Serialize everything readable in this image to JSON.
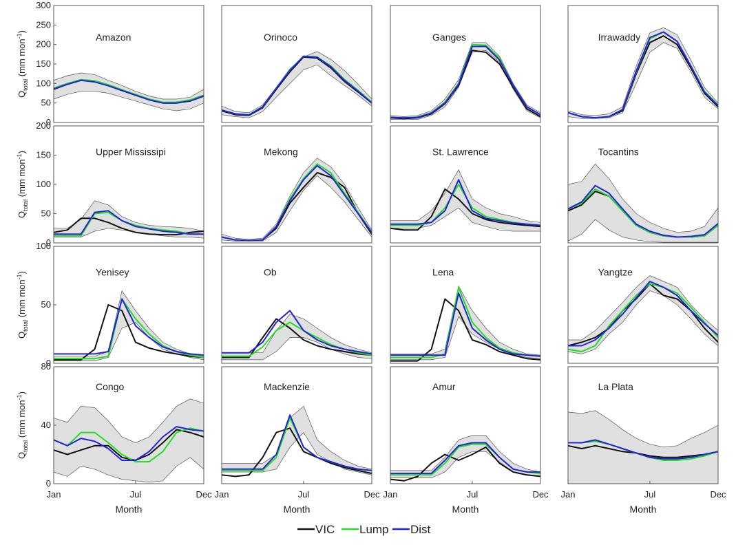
{
  "chart_data": {
    "type": "line",
    "x_tick_labels": [
      "Jan",
      "Jul",
      "Dec"
    ],
    "xlabel": "Month",
    "ylabel_main": "Q",
    "ylabel_sub": "total",
    "ylabel_unit": " (mm mon",
    "ylabel_exp": "-1",
    "ylabel_close": ")",
    "legend": [
      {
        "name": "VIC",
        "color": "#111111"
      },
      {
        "name": "Lump",
        "color": "#22dd22"
      },
      {
        "name": "Dist",
        "color": "#2222dd"
      }
    ],
    "band_color": "#e0e0e0",
    "rows": [
      {
        "ylim": [
          0,
          300
        ],
        "yticks": [
          0,
          50,
          100,
          150,
          200,
          250,
          300
        ]
      },
      {
        "ylim": [
          0,
          200
        ],
        "yticks": [
          0,
          50,
          100,
          150,
          200
        ]
      },
      {
        "ylim": [
          0,
          100
        ],
        "yticks": [
          0,
          50,
          100
        ]
      },
      {
        "ylim": [
          0,
          80
        ],
        "yticks": [
          0,
          40,
          80
        ]
      }
    ],
    "panels": [
      {
        "title": "Amazon",
        "row": 0,
        "col": 0,
        "band_lo": [
          60,
          72,
          80,
          80,
          75,
          65,
          55,
          45,
          35,
          30,
          35,
          50
        ],
        "band_hi": [
          108,
          120,
          127,
          123,
          108,
          95,
          80,
          68,
          60,
          60,
          65,
          85
        ],
        "vic": [
          85,
          98,
          108,
          105,
          95,
          82,
          70,
          58,
          50,
          50,
          55,
          68
        ],
        "lump": [
          88,
          100,
          110,
          107,
          97,
          84,
          72,
          60,
          52,
          52,
          58,
          70
        ],
        "dist": [
          86,
          98,
          108,
          104,
          94,
          82,
          70,
          58,
          50,
          50,
          55,
          68
        ]
      },
      {
        "title": "Orinoco",
        "row": 0,
        "col": 1,
        "band_lo": [
          20,
          15,
          12,
          28,
          65,
          100,
          135,
          148,
          120,
          95,
          70,
          42
        ],
        "band_hi": [
          42,
          28,
          25,
          45,
          90,
          138,
          168,
          182,
          162,
          133,
          98,
          60
        ],
        "vic": [
          30,
          20,
          18,
          38,
          85,
          130,
          168,
          165,
          140,
          105,
          78,
          50
        ],
        "lump": [
          32,
          22,
          20,
          40,
          88,
          135,
          170,
          168,
          145,
          110,
          82,
          52
        ],
        "dist": [
          32,
          22,
          19,
          40,
          88,
          133,
          170,
          167,
          143,
          108,
          80,
          50
        ]
      },
      {
        "title": "Ganges",
        "row": 0,
        "col": 2,
        "band_lo": [
          8,
          8,
          8,
          18,
          40,
          90,
          180,
          185,
          155,
          85,
          30,
          12
        ],
        "band_hi": [
          18,
          15,
          18,
          30,
          60,
          110,
          205,
          205,
          170,
          100,
          45,
          25
        ],
        "vic": [
          12,
          10,
          12,
          22,
          48,
          95,
          185,
          180,
          150,
          90,
          35,
          15
        ],
        "lump": [
          14,
          12,
          14,
          25,
          52,
          100,
          200,
          198,
          165,
          95,
          40,
          20
        ],
        "dist": [
          13,
          12,
          13,
          24,
          50,
          98,
          195,
          195,
          160,
          95,
          40,
          20
        ]
      },
      {
        "title": "Irrawaddy",
        "row": 0,
        "col": 3,
        "band_lo": [
          15,
          10,
          10,
          12,
          25,
          100,
          180,
          205,
          190,
          130,
          65,
          35
        ],
        "band_hi": [
          30,
          20,
          18,
          22,
          40,
          145,
          230,
          243,
          225,
          160,
          90,
          50
        ],
        "vic": [
          25,
          15,
          12,
          15,
          30,
          125,
          205,
          222,
          200,
          140,
          75,
          40
        ],
        "lump": [
          25,
          15,
          12,
          15,
          33,
          130,
          215,
          232,
          208,
          145,
          80,
          45
        ],
        "dist": [
          25,
          15,
          12,
          15,
          33,
          132,
          218,
          232,
          208,
          145,
          78,
          43
        ]
      },
      {
        "title": "Upper Mississipi",
        "row": 1,
        "col": 0,
        "band_lo": [
          10,
          10,
          10,
          20,
          25,
          22,
          18,
          15,
          12,
          10,
          10,
          8
        ],
        "band_hi": [
          25,
          25,
          40,
          72,
          65,
          45,
          35,
          30,
          28,
          27,
          25,
          20
        ],
        "vic": [
          18,
          22,
          42,
          42,
          35,
          25,
          18,
          15,
          14,
          14,
          18,
          20
        ],
        "lump": [
          12,
          12,
          12,
          50,
          52,
          38,
          30,
          25,
          22,
          20,
          15,
          15
        ],
        "dist": [
          15,
          15,
          15,
          52,
          55,
          38,
          28,
          24,
          20,
          18,
          15,
          15
        ]
      },
      {
        "title": "Mekong",
        "row": 1,
        "col": 1,
        "band_lo": [
          5,
          3,
          3,
          3,
          18,
          55,
          90,
          115,
          95,
          70,
          40,
          10
        ],
        "band_hi": [
          15,
          8,
          6,
          8,
          32,
          80,
          120,
          145,
          130,
          100,
          60,
          22
        ],
        "vic": [
          10,
          5,
          4,
          5,
          25,
          68,
          95,
          120,
          112,
          95,
          50,
          15
        ],
        "lump": [
          10,
          5,
          4,
          5,
          28,
          75,
          110,
          135,
          120,
          85,
          52,
          18
        ],
        "dist": [
          10,
          5,
          4,
          5,
          28,
          72,
          108,
          132,
          115,
          82,
          50,
          18
        ]
      },
      {
        "title": "St. Lawrence",
        "row": 1,
        "col": 2,
        "band_lo": [
          25,
          25,
          25,
          30,
          45,
          60,
          35,
          28,
          22,
          20,
          20,
          20
        ],
        "band_hi": [
          38,
          38,
          38,
          55,
          85,
          125,
          75,
          60,
          50,
          45,
          38,
          35
        ],
        "vic": [
          25,
          22,
          22,
          45,
          92,
          75,
          50,
          40,
          35,
          32,
          30,
          28
        ],
        "lump": [
          30,
          30,
          30,
          35,
          60,
          100,
          60,
          45,
          40,
          35,
          32,
          30
        ],
        "dist": [
          32,
          32,
          32,
          35,
          55,
          108,
          55,
          42,
          38,
          34,
          32,
          30
        ]
      },
      {
        "title": "Tocantins",
        "row": 1,
        "col": 3,
        "band_lo": [
          3,
          15,
          40,
          22,
          10,
          5,
          2,
          1,
          1,
          1,
          1,
          1
        ],
        "band_hi": [
          100,
          105,
          135,
          110,
          75,
          50,
          35,
          25,
          18,
          20,
          28,
          60
        ],
        "vic": [
          55,
          65,
          88,
          80,
          55,
          30,
          18,
          12,
          10,
          10,
          12,
          30
        ],
        "lump": [
          58,
          68,
          92,
          80,
          55,
          30,
          18,
          12,
          10,
          10,
          12,
          30
        ],
        "dist": [
          58,
          70,
          98,
          85,
          58,
          32,
          20,
          13,
          10,
          11,
          14,
          33
        ]
      },
      {
        "title": "Yenisey",
        "row": 2,
        "col": 0,
        "band_lo": [
          2,
          2,
          2,
          2,
          5,
          30,
          35,
          22,
          12,
          8,
          5,
          3
        ],
        "band_hi": [
          6,
          6,
          6,
          6,
          10,
          62,
          45,
          30,
          18,
          12,
          8,
          6
        ],
        "vic": [
          3,
          3,
          3,
          12,
          50,
          45,
          18,
          13,
          10,
          8,
          6,
          5
        ],
        "lump": [
          4,
          4,
          4,
          4,
          6,
          55,
          38,
          25,
          15,
          10,
          7,
          5
        ],
        "dist": [
          8,
          8,
          8,
          8,
          10,
          55,
          32,
          22,
          14,
          10,
          8,
          7
        ]
      },
      {
        "title": "Ob",
        "row": 2,
        "col": 1,
        "band_lo": [
          3,
          3,
          3,
          3,
          10,
          22,
          22,
          18,
          12,
          8,
          5,
          4
        ],
        "band_hi": [
          9,
          9,
          9,
          9,
          28,
          42,
          38,
          30,
          22,
          16,
          12,
          9
        ],
        "vic": [
          5,
          5,
          5,
          22,
          38,
          30,
          20,
          15,
          12,
          10,
          8,
          7
        ],
        "lump": [
          6,
          6,
          6,
          14,
          28,
          35,
          28,
          22,
          16,
          12,
          9,
          7
        ],
        "dist": [
          9,
          9,
          9,
          18,
          35,
          45,
          28,
          20,
          15,
          12,
          10,
          8
        ]
      },
      {
        "title": "Lena",
        "row": 2,
        "col": 2,
        "band_lo": [
          3,
          3,
          3,
          3,
          5,
          40,
          25,
          18,
          12,
          8,
          5,
          4
        ],
        "band_hi": [
          8,
          8,
          8,
          8,
          12,
          66,
          45,
          30,
          18,
          12,
          8,
          7
        ],
        "vic": [
          2,
          2,
          2,
          12,
          55,
          45,
          20,
          16,
          10,
          7,
          4,
          3
        ],
        "lump": [
          5,
          5,
          5,
          5,
          8,
          65,
          35,
          22,
          13,
          9,
          7,
          6
        ],
        "dist": [
          7,
          7,
          7,
          7,
          7,
          60,
          30,
          20,
          12,
          8,
          7,
          6
        ]
      },
      {
        "title": "Yangtze",
        "row": 2,
        "col": 3,
        "band_lo": [
          10,
          8,
          12,
          25,
          35,
          50,
          62,
          58,
          50,
          38,
          25,
          15
        ],
        "band_hi": [
          20,
          20,
          28,
          40,
          52,
          65,
          75,
          70,
          65,
          50,
          38,
          28
        ],
        "vic": [
          15,
          18,
          22,
          30,
          45,
          55,
          68,
          58,
          55,
          45,
          30,
          18
        ],
        "lump": [
          12,
          10,
          15,
          32,
          45,
          58,
          68,
          65,
          60,
          48,
          35,
          22
        ],
        "dist": [
          15,
          15,
          20,
          30,
          42,
          56,
          70,
          65,
          58,
          45,
          34,
          24
        ]
      },
      {
        "title": "Congo",
        "row": 3,
        "col": 0,
        "band_lo": [
          8,
          5,
          12,
          10,
          6,
          3,
          2,
          1,
          2,
          12,
          18,
          10
        ],
        "band_hi": [
          45,
          42,
          53,
          52,
          43,
          32,
          28,
          32,
          42,
          53,
          58,
          55
        ],
        "vic": [
          23,
          20,
          23,
          26,
          26,
          18,
          16,
          20,
          28,
          37,
          35,
          32
        ],
        "lump": [
          30,
          26,
          35,
          35,
          28,
          20,
          15,
          15,
          22,
          35,
          38,
          36
        ],
        "dist": [
          30,
          26,
          31,
          29,
          24,
          16,
          16,
          22,
          32,
          39,
          37,
          36
        ]
      },
      {
        "title": "Mackenzie",
        "row": 3,
        "col": 1,
        "band_lo": [
          8,
          8,
          8,
          8,
          10,
          25,
          35,
          20,
          15,
          10,
          8,
          6
        ],
        "band_hi": [
          14,
          14,
          14,
          14,
          20,
          45,
          53,
          30,
          22,
          16,
          12,
          10
        ],
        "vic": [
          6,
          5,
          6,
          18,
          35,
          38,
          22,
          18,
          14,
          11,
          9,
          7
        ],
        "lump": [
          9,
          9,
          9,
          9,
          18,
          45,
          25,
          18,
          15,
          12,
          10,
          9
        ],
        "dist": [
          10,
          10,
          10,
          10,
          20,
          47,
          25,
          18,
          15,
          12,
          10,
          9
        ]
      },
      {
        "title": "Amur",
        "row": 3,
        "col": 2,
        "band_lo": [
          4,
          4,
          4,
          4,
          8,
          18,
          22,
          22,
          15,
          8,
          6,
          5
        ],
        "band_hi": [
          9,
          9,
          9,
          9,
          18,
          30,
          33,
          33,
          22,
          14,
          10,
          8
        ],
        "vic": [
          3,
          2,
          5,
          14,
          20,
          16,
          20,
          25,
          14,
          8,
          6,
          5
        ],
        "lump": [
          6,
          6,
          6,
          6,
          14,
          25,
          27,
          27,
          18,
          10,
          8,
          7
        ],
        "dist": [
          7,
          7,
          7,
          7,
          16,
          26,
          28,
          28,
          18,
          10,
          8,
          8
        ]
      },
      {
        "title": "La Plata",
        "row": 3,
        "col": 3,
        "band_lo": [
          0,
          0,
          0,
          0,
          0,
          0,
          0,
          0,
          0,
          0,
          0,
          0
        ],
        "band_hi": [
          49,
          48,
          50,
          44,
          37,
          31,
          27,
          25,
          26,
          31,
          35,
          40
        ],
        "vic": [
          26,
          24,
          26,
          24,
          22,
          21,
          19,
          18,
          18,
          19,
          20,
          22
        ],
        "lump": [
          28,
          28,
          29,
          27,
          24,
          21,
          18,
          16,
          16,
          17,
          19,
          22
        ],
        "dist": [
          28,
          28,
          30,
          27,
          24,
          21,
          18,
          17,
          17,
          18,
          20,
          22
        ]
      }
    ]
  }
}
